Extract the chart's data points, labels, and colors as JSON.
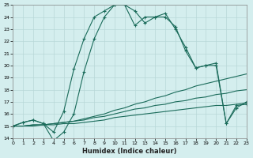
{
  "xlabel": "Humidex (Indice chaleur)",
  "x": [
    0,
    1,
    2,
    3,
    4,
    5,
    6,
    7,
    8,
    9,
    10,
    11,
    12,
    13,
    14,
    15,
    16,
    17,
    18,
    19,
    20,
    21,
    22,
    23
  ],
  "series1": [
    15.0,
    15.3,
    15.5,
    15.2,
    14.5,
    16.2,
    19.7,
    22.2,
    24.0,
    24.5,
    25.0,
    25.0,
    24.5,
    23.5,
    24.0,
    24.0,
    23.2,
    21.2,
    19.8,
    20.0,
    20.2,
    15.2,
    16.7,
    16.8
  ],
  "series2": [
    15.0,
    15.3,
    15.5,
    15.2,
    13.8,
    14.5,
    16.0,
    19.5,
    22.2,
    24.0,
    25.0,
    25.0,
    23.3,
    24.0,
    24.0,
    24.3,
    23.0,
    21.5,
    19.8,
    20.0,
    20.0,
    15.2,
    16.5,
    17.0
  ],
  "series3": [
    15.0,
    15.0,
    15.1,
    15.1,
    15.2,
    15.3,
    15.4,
    15.6,
    15.8,
    16.0,
    16.3,
    16.5,
    16.8,
    17.0,
    17.3,
    17.5,
    17.8,
    18.0,
    18.3,
    18.5,
    18.7,
    18.9,
    19.1,
    19.3
  ],
  "series4": [
    15.0,
    15.0,
    15.1,
    15.1,
    15.2,
    15.3,
    15.4,
    15.5,
    15.7,
    15.8,
    16.0,
    16.2,
    16.4,
    16.5,
    16.7,
    16.8,
    17.0,
    17.1,
    17.3,
    17.4,
    17.6,
    17.7,
    17.9,
    18.0
  ],
  "series5": [
    15.0,
    15.0,
    15.0,
    15.1,
    15.1,
    15.2,
    15.2,
    15.3,
    15.4,
    15.5,
    15.7,
    15.8,
    15.9,
    16.0,
    16.1,
    16.2,
    16.3,
    16.4,
    16.5,
    16.6,
    16.7,
    16.7,
    16.8,
    16.9
  ],
  "line_color": "#1a6b5a",
  "bg_color": "#d4eeee",
  "grid_color": "#b8d8d8",
  "ylim": [
    14,
    25
  ],
  "ytick_min": 14,
  "ytick_max": 25,
  "xlim": [
    0,
    23
  ],
  "xtick_labels": [
    "0",
    "1",
    "2",
    "3",
    "4",
    "5",
    "6",
    "7",
    "8",
    "9",
    "10",
    "11",
    "12",
    "13",
    "14",
    "15",
    "16",
    "17",
    "18",
    "19",
    "20",
    "21",
    "22",
    "23"
  ]
}
